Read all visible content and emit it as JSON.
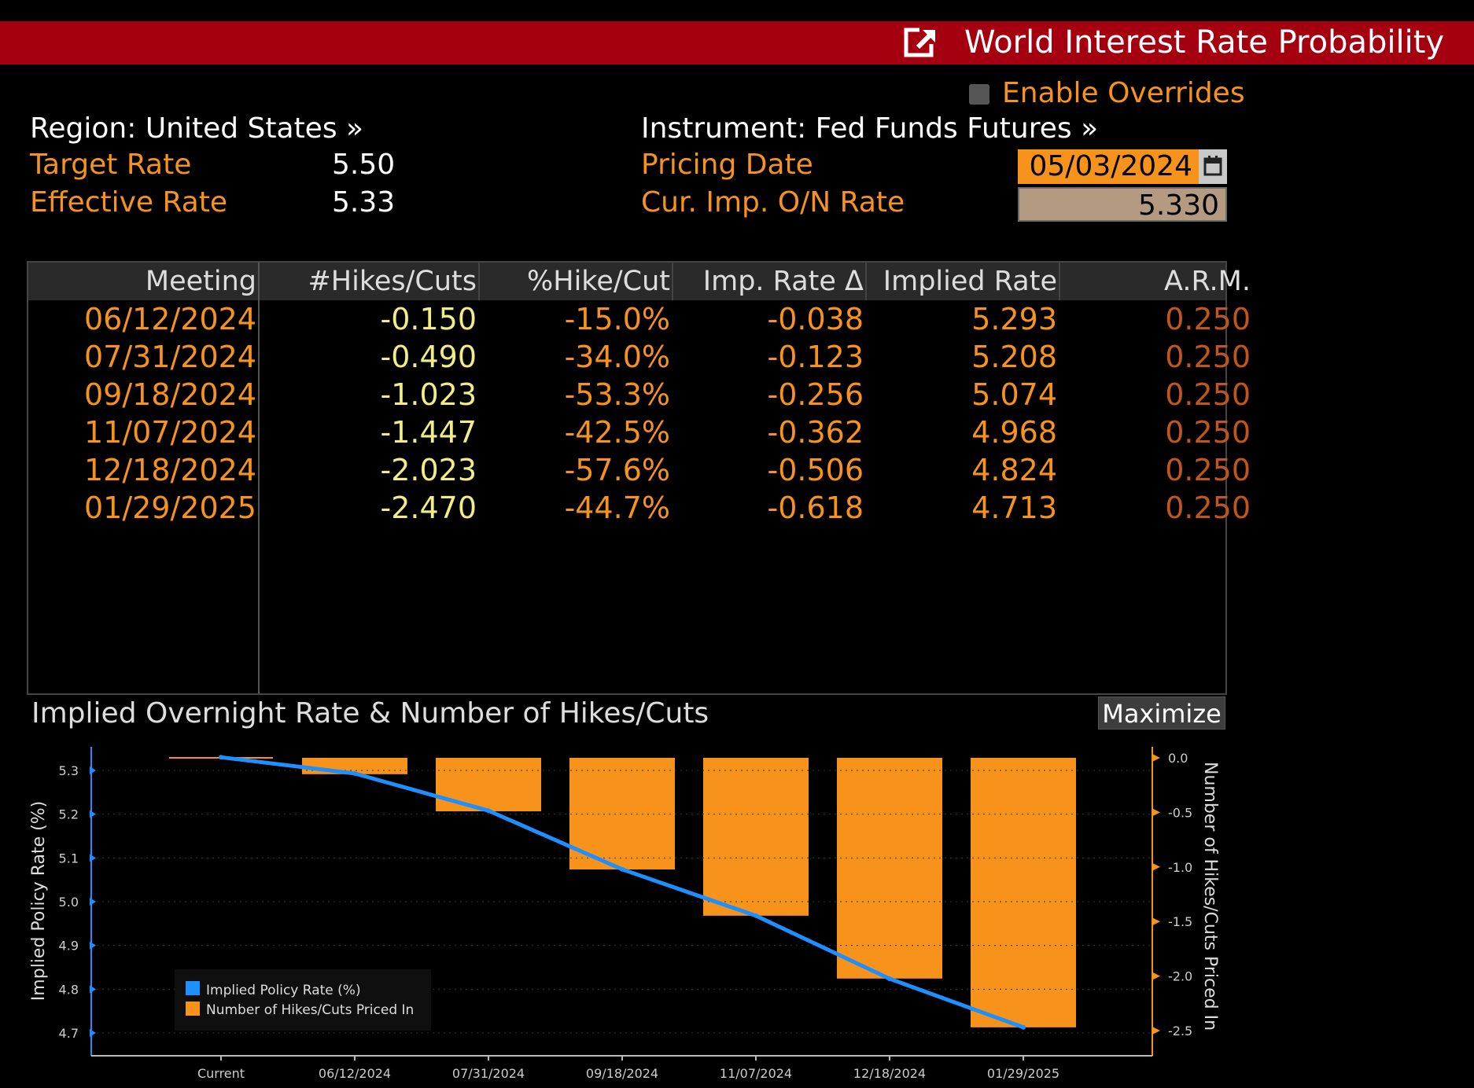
{
  "window": {
    "title": "World Interest Rate Probability",
    "enable_overrides_label": "Enable Overrides"
  },
  "header": {
    "region": "Region: United States »",
    "instrument": "Instrument: Fed Funds Futures »",
    "target_rate_label": "Target Rate",
    "target_rate_value": "5.50",
    "effective_rate_label": "Effective Rate",
    "effective_rate_value": "5.33",
    "pricing_date_label": "Pricing Date",
    "pricing_date_value": "05/03/2024",
    "on_rate_label": "Cur. Imp. O/N Rate",
    "on_rate_value": "5.330"
  },
  "table": {
    "columns": [
      "Meeting",
      "#Hikes/Cuts",
      "%Hike/Cut",
      "Imp. Rate Δ",
      "Implied Rate",
      "A.R.M."
    ],
    "rows": [
      {
        "meeting": "06/12/2024",
        "hikes": "-0.150",
        "pct": "-15.0%",
        "delta": "-0.038",
        "implied": "5.293",
        "arm": "0.250"
      },
      {
        "meeting": "07/31/2024",
        "hikes": "-0.490",
        "pct": "-34.0%",
        "delta": "-0.123",
        "implied": "5.208",
        "arm": "0.250"
      },
      {
        "meeting": "09/18/2024",
        "hikes": "-1.023",
        "pct": "-53.3%",
        "delta": "-0.256",
        "implied": "5.074",
        "arm": "0.250"
      },
      {
        "meeting": "11/07/2024",
        "hikes": "-1.447",
        "pct": "-42.5%",
        "delta": "-0.362",
        "implied": "4.968",
        "arm": "0.250"
      },
      {
        "meeting": "12/18/2024",
        "hikes": "-2.023",
        "pct": "-57.6%",
        "delta": "-0.506",
        "implied": "4.824",
        "arm": "0.250"
      },
      {
        "meeting": "01/29/2025",
        "hikes": "-2.470",
        "pct": "-44.7%",
        "delta": "-0.618",
        "implied": "4.713",
        "arm": "0.250"
      }
    ]
  },
  "chart": {
    "title": "Implied Overnight Rate & Number of Hikes/Cuts",
    "maximize_label": "Maximize"
  },
  "colors": {
    "title_bar": "#a5000f",
    "accent_orange": "#f7931a",
    "line_blue": "#1e8fff",
    "value_yellow": "#f0ed86"
  },
  "chart_data": {
    "type": "bar",
    "title": "Implied Overnight Rate & Number of Hikes/Cuts",
    "categories": [
      "Current",
      "06/12/2024",
      "07/31/2024",
      "09/18/2024",
      "11/07/2024",
      "12/18/2024",
      "01/29/2025"
    ],
    "ylabel": "Implied Policy Rate (%)",
    "y2label": "Number of Hikes/Cuts Priced In",
    "ylim": [
      4.67,
      5.33
    ],
    "y2lim": [
      -2.6,
      0.0
    ],
    "yticks": [
      "4.7",
      "4.8",
      "4.9",
      "5.0",
      "5.1",
      "5.2",
      "5.3"
    ],
    "y2ticks": [
      "0.0",
      "-0.5",
      "-1.0",
      "-1.5",
      "-2.0",
      "-2.5"
    ],
    "series": [
      {
        "name": "Implied Policy Rate (%)",
        "type": "line",
        "axis": "left",
        "values": [
          5.33,
          5.293,
          5.208,
          5.074,
          4.968,
          4.824,
          4.713
        ]
      },
      {
        "name": "Number of Hikes/Cuts Priced In",
        "type": "bar",
        "axis": "right",
        "values": [
          0,
          -0.15,
          -0.49,
          -1.023,
          -1.447,
          -2.023,
          -2.47
        ]
      }
    ],
    "legend": "bottom-left"
  }
}
